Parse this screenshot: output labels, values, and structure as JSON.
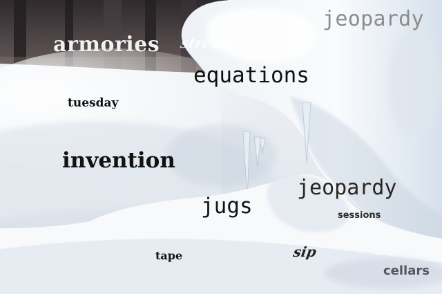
{
  "scene": {
    "description_colors": {
      "snow": "#eef1f5",
      "shadow": "#c7d0dc",
      "trees": "#3a3638"
    }
  },
  "words": {
    "armories": "armories",
    "streets": "streets",
    "jeopardy_top": "jeopardy",
    "equations": "equations",
    "tuesday": "tuesday",
    "invention": "invention",
    "jeopardy_mid": "jeopardy",
    "jugs": "jugs",
    "sessions": "sessions",
    "sip": "sip",
    "tape": "tape",
    "cellars": "cellars"
  }
}
